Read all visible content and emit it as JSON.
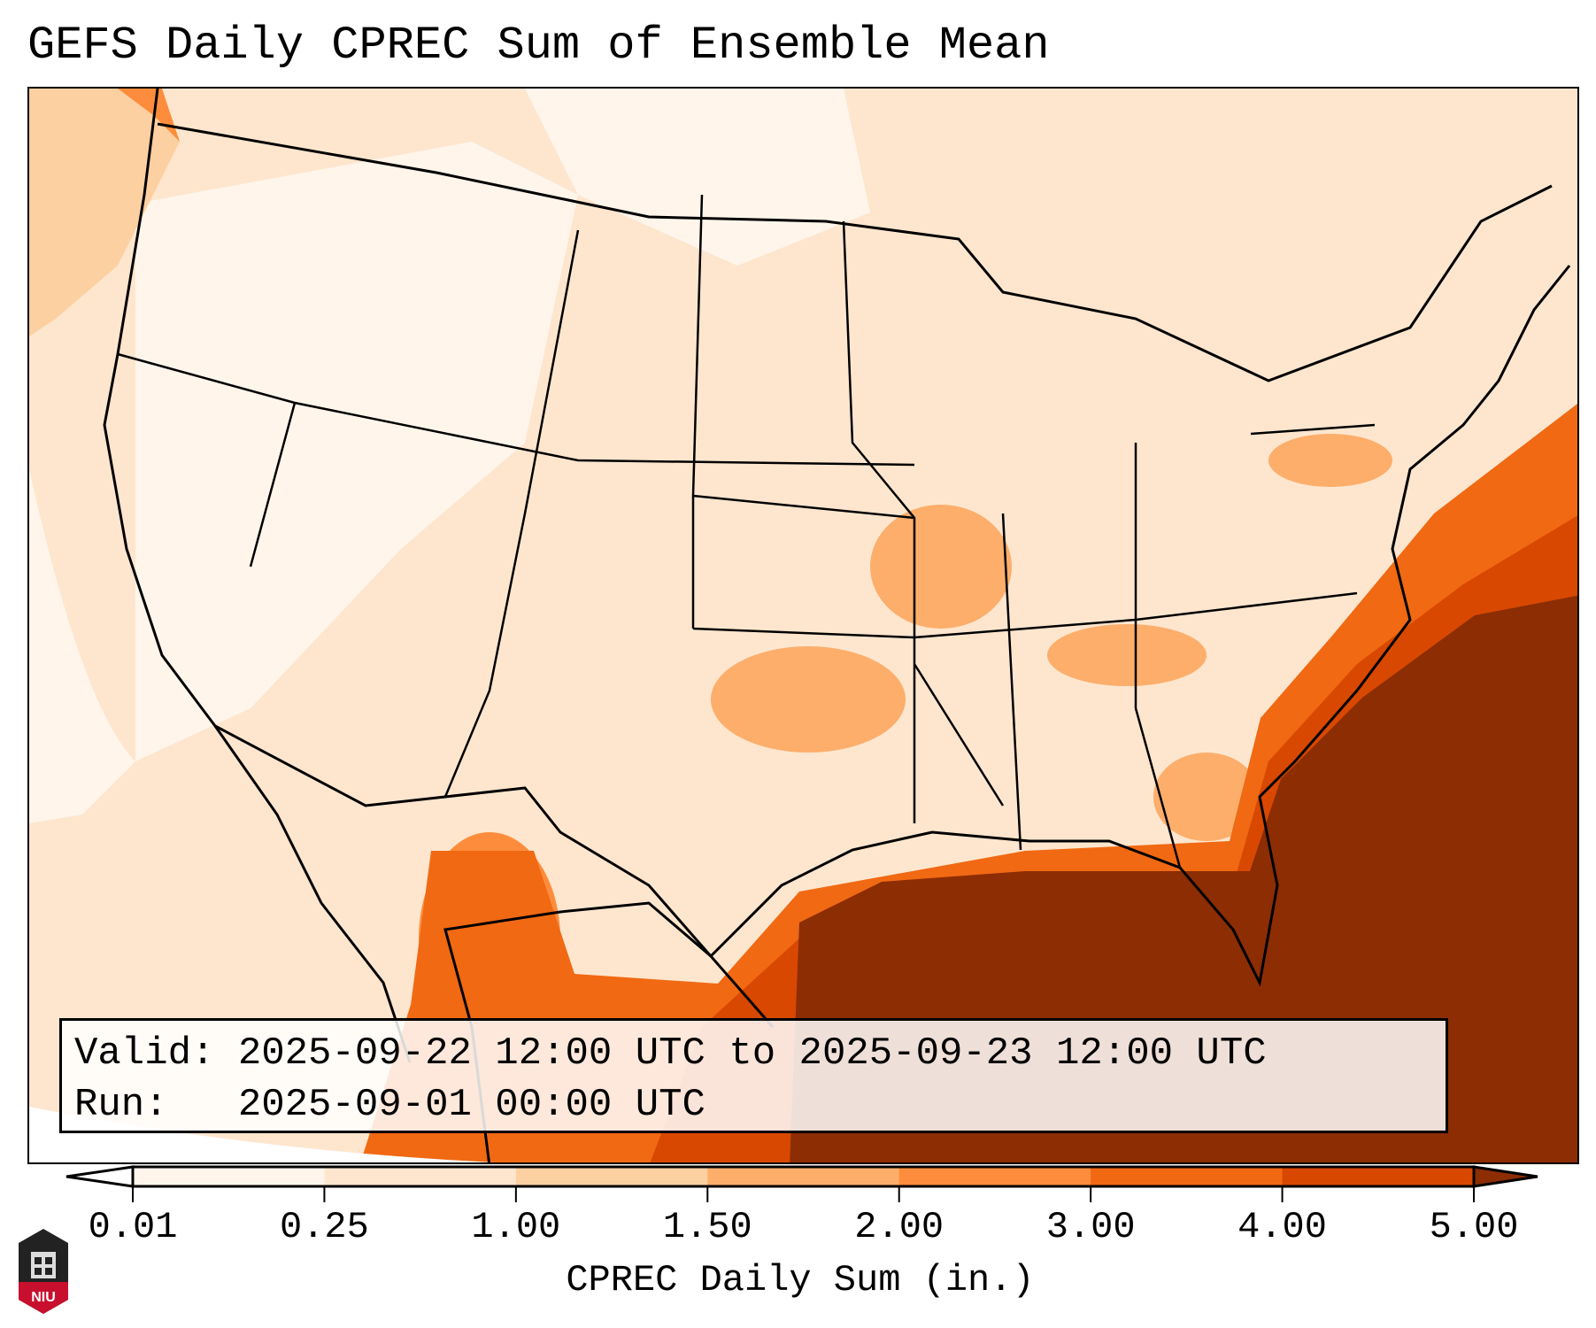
{
  "title": "GEFS Daily CPREC Sum of Ensemble Mean",
  "info": {
    "valid_label": "Valid:",
    "valid_value": "2025-09-22 12:00 UTC to 2025-09-23 12:00 UTC",
    "run_label": "Run:",
    "run_value": "2025-09-01 00:00 UTC"
  },
  "colorbar": {
    "label": "CPREC Daily Sum (in.)",
    "ticks": [
      "0.01",
      "0.25",
      "1.00",
      "1.50",
      "2.00",
      "3.00",
      "4.00",
      "5.00"
    ],
    "colors": [
      "#fff5eb",
      "#fee6ce",
      "#fdd0a2",
      "#fdae6b",
      "#fd8d3c",
      "#f16913",
      "#d94801"
    ],
    "under_color": "#ffffff",
    "over_color": "#8c2d04"
  },
  "logo": {
    "text": "NIU"
  }
}
